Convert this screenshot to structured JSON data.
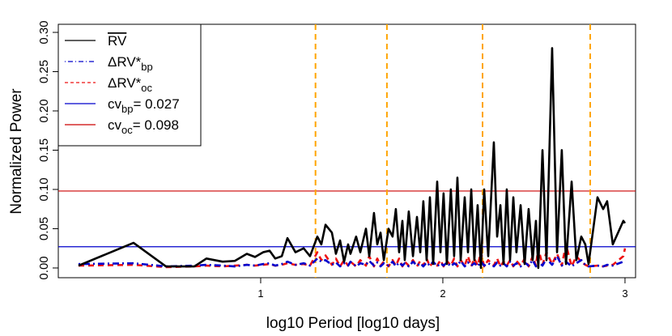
{
  "chart_data": {
    "type": "line",
    "xlabel": "log10 Period [log10 days]",
    "ylabel": "Normalized Power",
    "xlim": [
      -0.111,
      3.058
    ],
    "ylim": [
      -0.0124,
      0.3103
    ],
    "xticks": [
      1,
      2,
      3
    ],
    "yticks": [
      {
        "value": 0,
        "label": "0.00"
      },
      {
        "value": 0.05,
        "label": "0.05"
      },
      {
        "value": 0.1,
        "label": "0.10"
      },
      {
        "value": 0.15,
        "label": "0.15"
      },
      {
        "value": 0.2,
        "label": "0.20"
      },
      {
        "value": 0.25,
        "label": "0.25"
      },
      {
        "value": 0.3,
        "label": "0.30"
      }
    ],
    "legend": "top-left",
    "x": [
      0.0,
      0.302,
      0.48,
      0.636,
      0.702,
      0.791,
      0.858,
      0.924,
      0.969,
      1.013,
      1.049,
      1.08,
      1.116,
      1.147,
      1.191,
      1.236,
      1.271,
      1.311,
      1.333,
      1.356,
      1.391,
      1.413,
      1.436,
      1.458,
      1.48,
      1.493,
      1.524,
      1.547,
      1.578,
      1.596,
      1.622,
      1.64,
      1.658,
      1.676,
      1.702,
      1.724,
      1.742,
      1.76,
      1.778,
      1.791,
      1.813,
      1.836,
      1.858,
      1.876,
      1.893,
      1.911,
      1.929,
      1.947,
      1.969,
      1.987,
      2.004,
      2.022,
      2.044,
      2.062,
      2.08,
      2.098,
      2.12,
      2.138,
      2.156,
      2.173,
      2.191,
      2.209,
      2.227,
      2.249,
      2.28,
      2.298,
      2.316,
      2.333,
      2.351,
      2.369,
      2.387,
      2.404,
      2.427,
      2.449,
      2.471,
      2.493,
      2.511,
      2.524,
      2.547,
      2.569,
      2.6,
      2.627,
      2.653,
      2.676,
      2.707,
      2.733,
      2.76,
      2.782,
      2.8,
      2.849,
      2.88,
      2.902,
      2.933,
      2.991,
      3.0
    ],
    "series": [
      {
        "name": "RV",
        "overline": true,
        "color": "#000000",
        "line_style": "solid",
        "line_width": 2.6,
        "values": [
          0.003,
          0.032,
          0.002,
          0.002,
          0.012,
          0.008,
          0.009,
          0.018,
          0.014,
          0.02,
          0.022,
          0.012,
          0.015,
          0.038,
          0.02,
          0.025,
          0.015,
          0.04,
          0.03,
          0.055,
          0.045,
          0.018,
          0.035,
          0.008,
          0.03,
          0.018,
          0.04,
          0.02,
          0.05,
          0.015,
          0.07,
          0.03,
          0.045,
          0.01,
          0.05,
          0.04,
          0.075,
          0.02,
          0.06,
          0.01,
          0.072,
          0.015,
          0.065,
          0.02,
          0.085,
          0.01,
          0.09,
          0.005,
          0.11,
          0.02,
          0.095,
          0.005,
          0.1,
          0.015,
          0.115,
          0.01,
          0.09,
          0.02,
          0.1,
          0.01,
          0.08,
          0.0,
          0.1,
          0.015,
          0.16,
          0.04,
          0.08,
          0.005,
          0.1,
          0.01,
          0.09,
          0.02,
          0.08,
          0.005,
          0.075,
          0.01,
          0.06,
          0.0,
          0.15,
          0.01,
          0.28,
          0.02,
          0.15,
          0.005,
          0.11,
          0.01,
          0.04,
          0.03,
          0.005,
          0.09,
          0.075,
          0.085,
          0.03,
          0.06,
          0.057
        ]
      },
      {
        "name": "ΔRV*",
        "subscript": "bp",
        "color": "#0000cc",
        "line_style": "dotdash",
        "line_width": 2.6,
        "values": [
          0.005,
          0.006,
          0.002,
          0.003,
          0.004,
          0.003,
          0.002,
          0.004,
          0.003,
          0.005,
          0.006,
          0.003,
          0.005,
          0.008,
          0.004,
          0.006,
          0.003,
          0.012,
          0.008,
          0.01,
          0.004,
          0.007,
          0.002,
          0.006,
          0.003,
          0.008,
          0.002,
          0.006,
          0.004,
          0.009,
          0.003,
          0.007,
          0.002,
          0.006,
          0.003,
          0.008,
          0.002,
          0.007,
          0.003,
          0.006,
          0.002,
          0.008,
          0.003,
          0.006,
          0.002,
          0.007,
          0.003,
          0.008,
          0.002,
          0.006,
          0.003,
          0.007,
          0.002,
          0.006,
          0.003,
          0.009,
          0.002,
          0.007,
          0.003,
          0.006,
          0.002,
          0.008,
          0.003,
          0.006,
          0.002,
          0.007,
          0.003,
          0.006,
          0.002,
          0.008,
          0.003,
          0.006,
          0.002,
          0.007,
          0.003,
          0.01,
          0.002,
          0.008,
          0.003,
          0.012,
          0.004,
          0.015,
          0.003,
          0.008,
          0.002,
          0.006,
          0.01,
          0.004,
          0.002,
          0.003,
          0.002,
          0.004,
          0.003,
          0.008,
          0.01
        ]
      },
      {
        "name": "ΔRV*",
        "subscript": "oc",
        "color": "#ee1111",
        "line_style": "dashed",
        "line_width": 2.6,
        "values": [
          0.003,
          0.004,
          0.001,
          0.002,
          0.003,
          0.002,
          0.003,
          0.004,
          0.003,
          0.004,
          0.005,
          0.003,
          0.004,
          0.006,
          0.004,
          0.005,
          0.003,
          0.02,
          0.01,
          0.016,
          0.004,
          0.012,
          0.002,
          0.01,
          0.003,
          0.008,
          0.002,
          0.01,
          0.003,
          0.015,
          0.002,
          0.012,
          0.003,
          0.008,
          0.002,
          0.01,
          0.003,
          0.012,
          0.002,
          0.008,
          0.003,
          0.01,
          0.002,
          0.009,
          0.003,
          0.012,
          0.002,
          0.008,
          0.003,
          0.01,
          0.002,
          0.009,
          0.003,
          0.012,
          0.002,
          0.01,
          0.003,
          0.015,
          0.002,
          0.012,
          0.003,
          0.02,
          0.002,
          0.01,
          0.003,
          0.012,
          0.002,
          0.008,
          0.003,
          0.01,
          0.002,
          0.009,
          0.003,
          0.012,
          0.002,
          0.015,
          0.003,
          0.025,
          0.004,
          0.02,
          0.005,
          0.018,
          0.003,
          0.03,
          0.002,
          0.015,
          0.008,
          0.004,
          0.002,
          0.003,
          0.002,
          0.003,
          0.004,
          0.015,
          0.025
        ]
      }
    ],
    "reference_lines": [
      {
        "name": "cv",
        "subscript": "bp",
        "value": 0.027,
        "value_label": "= 0.027",
        "color": "#0000cc"
      },
      {
        "name": "cv",
        "subscript": "oc",
        "value": 0.098,
        "value_label": "= 0.098",
        "color": "#cc0000"
      }
    ],
    "vlines": [
      {
        "value": 1.301,
        "color": "#ffa500"
      },
      {
        "value": 1.693,
        "color": "#ffa500"
      },
      {
        "value": 2.218,
        "color": "#ffa500"
      },
      {
        "value": 2.809,
        "color": "#ffa500"
      }
    ]
  }
}
